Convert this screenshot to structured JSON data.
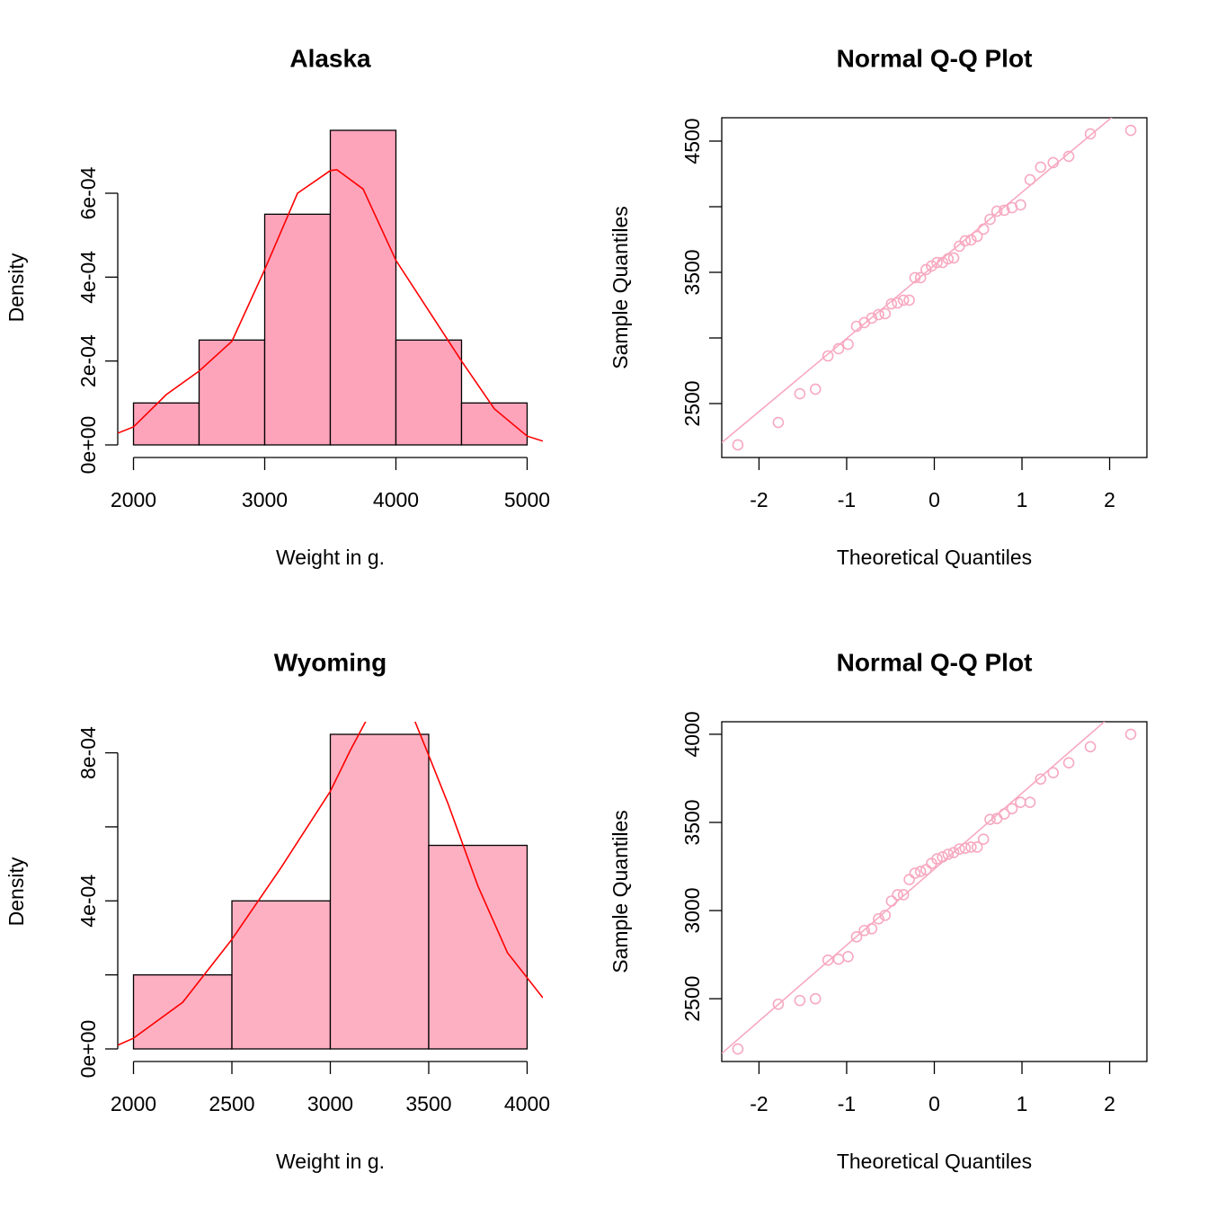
{
  "chart_data": [
    {
      "type": "histogram",
      "title": "Alaska",
      "xlabel": "Weight in g.",
      "ylabel": "Density",
      "bins": [
        2000,
        2500,
        3000,
        3500,
        4000,
        4500,
        5000
      ],
      "values": [
        0.0001,
        0.00025,
        0.00055,
        0.00075,
        0.00025,
        0.0001
      ],
      "color": "#fda4bb",
      "density": {
        "color": "#ff0000",
        "x": [
          1880,
          2000,
          2250,
          2500,
          2750,
          3000,
          3250,
          3500,
          3550,
          3750,
          4000,
          4250,
          4500,
          4750,
          5000,
          5120
        ],
        "values": [
          2.8e-05,
          4.3e-05,
          0.00012,
          0.000176,
          0.000247,
          0.000418,
          0.0006,
          0.000654,
          0.000656,
          0.00061,
          0.00044,
          0.00032,
          0.0002,
          8.6e-05,
          2.1e-05,
          9e-06
        ]
      },
      "xlim": [
        1880,
        5120
      ],
      "ylim": [
        -3e-05,
        0.00078
      ],
      "xticks": [
        2000,
        3000,
        4000,
        5000
      ],
      "yticks": [
        {
          "value": 0,
          "label": "0e+00"
        },
        {
          "value": 0.0002,
          "label": "2e-04"
        },
        {
          "value": 0.0004,
          "label": "4e-04"
        },
        {
          "value": 0.0006,
          "label": "6e-04"
        }
      ]
    },
    {
      "type": "qq",
      "title": "Normal Q-Q Plot",
      "xlabel": "Theoretical Quantiles",
      "ylabel": "Sample Quantiles",
      "x": [
        -2.241,
        -1.78,
        -1.534,
        -1.356,
        -1.213,
        -1.092,
        -0.984,
        -0.887,
        -0.798,
        -0.714,
        -0.636,
        -0.561,
        -0.489,
        -0.419,
        -0.352,
        -0.286,
        -0.221,
        -0.157,
        -0.094,
        -0.031,
        0.031,
        0.094,
        0.157,
        0.221,
        0.286,
        0.352,
        0.419,
        0.489,
        0.561,
        0.636,
        0.714,
        0.798,
        0.887,
        0.984,
        1.092,
        1.213,
        1.356,
        1.534,
        1.78,
        2.241
      ],
      "values": [
        2185,
        2356,
        2575,
        2610,
        2863,
        2918,
        2952,
        3089,
        3117,
        3151,
        3178,
        3185,
        3260,
        3267,
        3288,
        3288,
        3459,
        3459,
        3521,
        3548,
        3575,
        3575,
        3603,
        3610,
        3699,
        3740,
        3747,
        3774,
        3829,
        3904,
        3966,
        3973,
        3993,
        4014,
        4206,
        4302,
        4336,
        4384,
        4555,
        4582
      ],
      "color": "#f7a9c1",
      "qqline": {
        "intercept": 3553,
        "slope": 557,
        "color": "#f7a9c1"
      },
      "xlim": [
        -2.425,
        2.425
      ],
      "ylim": [
        2089,
        4678
      ],
      "xticks": [
        -2,
        -1,
        0,
        1,
        2
      ],
      "yticks": [
        2500,
        3500,
        4500
      ],
      "yminor_ticks": [
        3000,
        4000
      ]
    },
    {
      "type": "histogram",
      "title": "Wyoming",
      "xlabel": "Weight in g.",
      "ylabel": "Density",
      "bins": [
        2000,
        2500,
        3000,
        3500,
        4000
      ],
      "values": [
        0.0002,
        0.0004,
        0.00085,
        0.00055
      ],
      "color": "#fdb0c2",
      "density": {
        "color": "#ff0000",
        "x": [
          1920,
          2000,
          2250,
          2500,
          2750,
          3000,
          3100,
          3180,
          3250,
          3300,
          3350,
          3430,
          3500,
          3600,
          3750,
          3900,
          4080
        ],
        "values": [
          1e-05,
          2.9e-05,
          0.000126,
          0.000296,
          0.00049,
          0.000696,
          0.000805,
          0.000885,
          0.00096,
          0.00098,
          0.00097,
          0.000885,
          0.000793,
          0.00066,
          0.00044,
          0.00026,
          0.000138
        ]
      },
      "xlim": [
        1920,
        4080
      ],
      "ylim": [
        -3.4e-05,
        0.000884
      ],
      "xticks": [
        2000,
        2500,
        3000,
        3500,
        4000
      ],
      "yticks": [
        {
          "value": 0,
          "label": "0e+00"
        },
        {
          "value": 0.0004,
          "label": "4e-04"
        },
        {
          "value": 0.0008,
          "label": "8e-04"
        }
      ],
      "yminor_ticks": [
        0.0002,
        0.0006
      ]
    },
    {
      "type": "qq",
      "title": "Normal Q-Q Plot",
      "xlabel": "Theoretical Quantiles",
      "ylabel": "Sample Quantiles",
      "x": [
        -2.241,
        -1.78,
        -1.534,
        -1.356,
        -1.213,
        -1.092,
        -0.984,
        -0.887,
        -0.798,
        -0.714,
        -0.636,
        -0.561,
        -0.489,
        -0.419,
        -0.352,
        -0.286,
        -0.221,
        -0.157,
        -0.094,
        -0.031,
        0.031,
        0.094,
        0.157,
        0.221,
        0.286,
        0.352,
        0.419,
        0.489,
        0.561,
        0.636,
        0.714,
        0.798,
        0.887,
        0.984,
        1.092,
        1.213,
        1.356,
        1.534,
        1.78,
        2.241
      ],
      "values": [
        2215,
        2469,
        2490,
        2500,
        2719,
        2724,
        2739,
        2851,
        2887,
        2897,
        2953,
        2973,
        3054,
        3090,
        3090,
        3176,
        3212,
        3222,
        3232,
        3268,
        3293,
        3304,
        3319,
        3329,
        3349,
        3354,
        3360,
        3360,
        3405,
        3517,
        3522,
        3548,
        3578,
        3614,
        3614,
        3746,
        3782,
        3838,
        3929,
        4000
      ],
      "color": "#f7a9c1",
      "qqline": {
        "intercept": 3235,
        "slope": 431,
        "color": "#f7a9c1"
      },
      "xlim": [
        -2.425,
        2.425
      ],
      "ylim": [
        2144,
        4071
      ],
      "xticks": [
        -2,
        -1,
        0,
        1,
        2
      ],
      "yticks": [
        2500,
        3000,
        3500,
        4000
      ]
    }
  ]
}
